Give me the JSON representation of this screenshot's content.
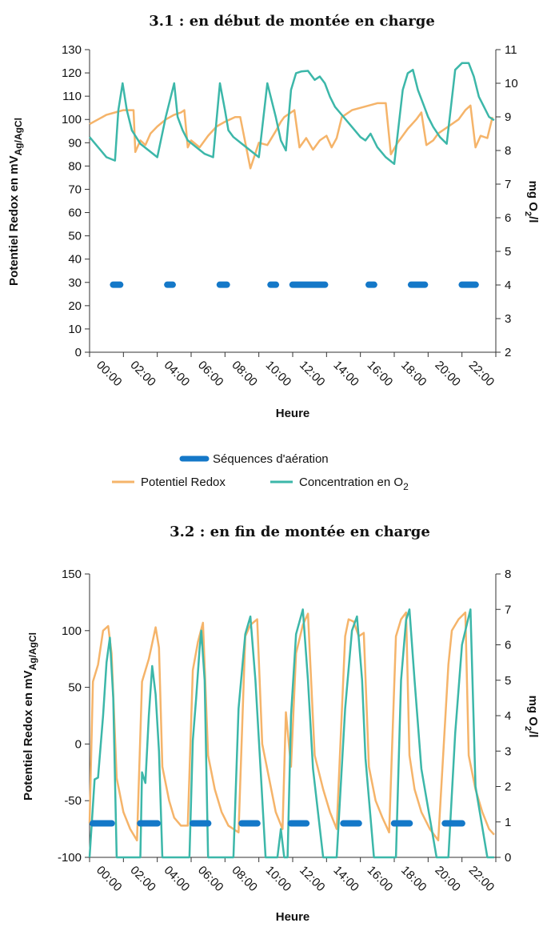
{
  "chart_data": [
    {
      "type": "line",
      "title": "3.1 : en début de montée en charge",
      "xlabel": "Heure",
      "ylabel": "Potentiel Redox en mV",
      "ylabel_sub": "Ag/AgCl",
      "ylabel2": "mg O",
      "ylabel2_sub": "2",
      "ylabel2_tail": "/l",
      "xlim": [
        0,
        24
      ],
      "ylim": [
        0,
        130
      ],
      "y2lim": [
        2,
        11
      ],
      "x_ticks": [
        "00:00",
        "02:00",
        "04:00",
        "06:00",
        "08:00",
        "10:00",
        "12:00",
        "14:00",
        "16:00",
        "18:00",
        "20:00",
        "22:00"
      ],
      "y_ticks": [
        "0",
        "10",
        "20",
        "30",
        "40",
        "50",
        "60",
        "70",
        "80",
        "90",
        "100",
        "110",
        "120",
        "130"
      ],
      "y2_ticks": [
        "2",
        "3",
        "4",
        "5",
        "6",
        "7",
        "8",
        "9",
        "10",
        "11"
      ],
      "legend": {
        "aeration": "Séquences d'aération",
        "redox": "Potentiel Redox",
        "o2": "Concentration en O",
        "o2_sub": "2"
      },
      "series": [
        {
          "name": "Potentiel Redox",
          "axis": "left",
          "color": "#f5b46a",
          "x": [
            0,
            0.5,
            1,
            1.5,
            2,
            2.6,
            2.7,
            3,
            3.3,
            3.6,
            4,
            4.5,
            5,
            5.4,
            5.6,
            5.8,
            6,
            6.5,
            7,
            7.5,
            8,
            8.3,
            8.6,
            8.9,
            9.5,
            10,
            10.5,
            11,
            11.3,
            11.5,
            11.7,
            11.9,
            12.1,
            12.4,
            12.8,
            13.2,
            13.6,
            14,
            14.3,
            14.6,
            14.9,
            15.5,
            16,
            16.5,
            17,
            17.5,
            17.8,
            18.2,
            18.8,
            19.3,
            19.6,
            19.9,
            20.3,
            20.6,
            21.2,
            21.8,
            22.2,
            22.5,
            22.8,
            23.1,
            23.5,
            23.8
          ],
          "values": [
            98,
            100,
            102,
            103,
            104,
            104,
            86,
            91,
            89,
            94,
            97,
            100,
            102,
            103,
            104,
            88,
            91,
            88,
            93,
            97,
            99,
            100,
            101,
            101,
            79,
            90,
            89,
            95,
            99,
            101,
            102,
            103,
            104,
            88,
            92,
            87,
            91,
            93,
            88,
            92,
            101,
            104,
            105,
            106,
            107,
            107,
            85,
            90,
            96,
            100,
            103,
            89,
            91,
            94,
            97,
            100,
            104,
            106,
            88,
            93,
            92,
            101
          ]
        },
        {
          "name": "Concentration en O2",
          "axis": "right",
          "color": "#3cb7a9",
          "x": [
            0,
            0.5,
            1,
            1.5,
            1.7,
            1.95,
            2.2,
            2.5,
            3,
            3.5,
            4,
            4.5,
            5,
            5.2,
            5.5,
            5.8,
            6.3,
            6.8,
            7.3,
            7.7,
            8,
            8.2,
            8.5,
            9,
            9.5,
            10,
            10.5,
            11,
            11.3,
            11.6,
            11.9,
            12.2,
            12.5,
            12.9,
            13.3,
            13.6,
            13.9,
            14.2,
            14.5,
            15,
            15.5,
            16,
            16.3,
            16.6,
            17,
            17.5,
            18,
            18.5,
            18.8,
            19.1,
            19.4,
            19.7,
            20,
            20.3,
            20.7,
            21.1,
            21.6,
            22,
            22.4,
            22.7,
            23,
            23.3,
            23.6,
            23.9
          ],
          "values": [
            8.4,
            8.1,
            7.8,
            7.7,
            9.2,
            10.0,
            9.2,
            8.6,
            8.2,
            8.0,
            7.8,
            9.0,
            10.0,
            9.0,
            8.6,
            8.3,
            8.1,
            7.9,
            7.8,
            10.0,
            9.2,
            8.6,
            8.4,
            8.2,
            8.0,
            7.8,
            10.0,
            9.0,
            8.3,
            8.0,
            9.8,
            10.3,
            10.35,
            10.37,
            10.1,
            10.2,
            10.0,
            9.6,
            9.3,
            9.0,
            8.7,
            8.4,
            8.3,
            8.5,
            8.1,
            7.8,
            7.6,
            9.8,
            10.3,
            10.4,
            9.8,
            9.4,
            9.0,
            8.7,
            8.4,
            8.2,
            10.4,
            10.6,
            10.6,
            10.2,
            9.6,
            9.3,
            9.0,
            8.9
          ]
        },
        {
          "name": "Séquences d'aération",
          "axis": "left",
          "color": "#1478c8",
          "value": 29,
          "segments": [
            [
              1.2,
              2.0
            ],
            [
              4.4,
              5.1
            ],
            [
              7.5,
              8.3
            ],
            [
              10.5,
              11.2
            ],
            [
              11.8,
              14.1
            ],
            [
              16.3,
              17.0
            ],
            [
              18.8,
              20.0
            ],
            [
              21.8,
              23.0
            ]
          ]
        }
      ]
    },
    {
      "type": "line",
      "title": "3.2 : en fin de montée en charge",
      "xlabel": "Heure",
      "ylabel": "Potentiel Redox en mV",
      "ylabel_sub": "Ag/AgCl",
      "ylabel2": "mg O",
      "ylabel2_sub": "2",
      "ylabel2_tail": "/l",
      "xlim": [
        0,
        24
      ],
      "ylim": [
        -100,
        150
      ],
      "y2lim": [
        0,
        8
      ],
      "x_ticks": [
        "00:00",
        "02:00",
        "04:00",
        "06:00",
        "08:00",
        "10:00",
        "12:00",
        "14:00",
        "16:00",
        "18:00",
        "20:00",
        "22:00"
      ],
      "y_ticks": [
        "-100",
        "-50",
        "0",
        "50",
        "100",
        "150"
      ],
      "y2_ticks": [
        "0",
        "1",
        "2",
        "3",
        "4",
        "5",
        "6",
        "7",
        "8"
      ],
      "series": [
        {
          "name": "Potentiel Redox",
          "axis": "left",
          "color": "#f5b46a",
          "x": [
            0,
            0.2,
            0.5,
            0.8,
            1.1,
            1.3,
            1.6,
            2.0,
            2.4,
            2.8,
            3.1,
            3.5,
            3.9,
            4.1,
            4.3,
            4.7,
            5.0,
            5.4,
            5.8,
            6.1,
            6.4,
            6.7,
            7.0,
            7.4,
            7.8,
            8.2,
            8.8,
            9.2,
            9.5,
            9.9,
            10.2,
            10.6,
            11.0,
            11.4,
            11.6,
            11.9,
            12.2,
            12.6,
            12.9,
            13.3,
            13.8,
            14.2,
            14.6,
            15.1,
            15.3,
            15.6,
            15.9,
            16.2,
            16.5,
            16.9,
            17.3,
            17.7,
            18.1,
            18.4,
            18.7,
            18.9,
            19.2,
            19.6,
            20.1,
            20.6,
            21.2,
            21.4,
            21.8,
            22.2,
            22.4,
            22.8,
            23.2,
            23.6,
            23.9
          ],
          "values": [
            -70,
            55,
            70,
            100,
            104,
            80,
            -30,
            -60,
            -75,
            -85,
            55,
            75,
            103,
            85,
            -20,
            -50,
            -65,
            -72,
            -72,
            65,
            90,
            107,
            -10,
            -40,
            -60,
            -72,
            -78,
            95,
            105,
            110,
            0,
            -30,
            -60,
            -75,
            28,
            -20,
            80,
            105,
            115,
            -10,
            -40,
            -60,
            -75,
            95,
            110,
            108,
            95,
            98,
            -20,
            -50,
            -65,
            -78,
            95,
            110,
            116,
            -10,
            -40,
            -60,
            -75,
            -85,
            70,
            100,
            110,
            116,
            -10,
            -40,
            -60,
            -75,
            -80
          ]
        },
        {
          "name": "Concentration en O2",
          "axis": "right",
          "color": "#3cb7a9",
          "x": [
            0,
            0.3,
            0.5,
            0.8,
            1.0,
            1.2,
            1.4,
            1.6,
            1.9,
            2.5,
            3.0,
            3.1,
            3.3,
            3.5,
            3.7,
            3.9,
            4.1,
            4.3,
            4.8,
            5.5,
            5.9,
            6.1,
            6.3,
            6.5,
            6.6,
            6.8,
            7.0,
            7.8,
            8.5,
            8.8,
            9.2,
            9.5,
            9.8,
            10.1,
            10.4,
            10.7,
            11.1,
            11.3,
            11.5,
            11.7,
            11.9,
            12.2,
            12.6,
            12.9,
            13.2,
            13.8,
            14.6,
            15.1,
            15.5,
            15.8,
            16.1,
            16.3,
            16.8,
            17.5,
            18.1,
            18.4,
            18.7,
            18.9,
            19.2,
            19.6,
            20.5,
            21.2,
            21.6,
            22.0,
            22.3,
            22.5,
            22.8,
            23.5,
            23.9
          ],
          "values": [
            0,
            2.2,
            2.25,
            4.0,
            5.5,
            6.2,
            4.5,
            0,
            0,
            0,
            0,
            2.4,
            2.1,
            4.0,
            5.4,
            4.6,
            3.0,
            0,
            0,
            0,
            0,
            3.3,
            4.5,
            5.9,
            6.4,
            5.0,
            0,
            0,
            0,
            4.2,
            6.3,
            6.8,
            5.0,
            2.5,
            0,
            0,
            0,
            0.8,
            0,
            0,
            4.0,
            6.3,
            7.0,
            5.0,
            2.5,
            0,
            0,
            4.2,
            6.4,
            6.8,
            5.0,
            2.8,
            0,
            0,
            0,
            5.0,
            6.7,
            7.0,
            5.0,
            2.5,
            0,
            0,
            3.5,
            6.0,
            6.6,
            7.0,
            2.0,
            0,
            0
          ]
        },
        {
          "name": "Séquences d'aération",
          "axis": "left",
          "color": "#1478c8",
          "value": -70,
          "segments": [
            [
              0,
              1.5
            ],
            [
              2.8,
              4.2
            ],
            [
              5.9,
              7.2
            ],
            [
              8.8,
              10.1
            ],
            [
              11.7,
              13.0
            ],
            [
              14.8,
              16.1
            ],
            [
              17.8,
              19.1
            ],
            [
              20.8,
              22.2
            ]
          ]
        }
      ]
    }
  ]
}
